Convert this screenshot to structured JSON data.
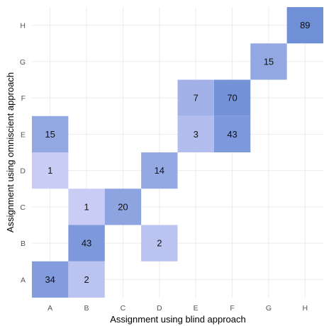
{
  "chart_data": {
    "type": "heatmap",
    "xlabel": "Assignment using blind approach",
    "ylabel": "Assignment using omniscient approach",
    "x_categories": [
      "A",
      "B",
      "C",
      "D",
      "E",
      "F",
      "G",
      "H"
    ],
    "y_categories": [
      "A",
      "B",
      "C",
      "D",
      "E",
      "F",
      "G",
      "H"
    ],
    "cells": [
      {
        "x": "A",
        "y": "A",
        "value": 34
      },
      {
        "x": "B",
        "y": "A",
        "value": 2
      },
      {
        "x": "B",
        "y": "B",
        "value": 43
      },
      {
        "x": "D",
        "y": "B",
        "value": 2
      },
      {
        "x": "B",
        "y": "C",
        "value": 1
      },
      {
        "x": "C",
        "y": "C",
        "value": 20
      },
      {
        "x": "A",
        "y": "D",
        "value": 1
      },
      {
        "x": "D",
        "y": "D",
        "value": 14
      },
      {
        "x": "A",
        "y": "E",
        "value": 15
      },
      {
        "x": "E",
        "y": "E",
        "value": 3
      },
      {
        "x": "F",
        "y": "E",
        "value": 43
      },
      {
        "x": "E",
        "y": "F",
        "value": 7
      },
      {
        "x": "F",
        "y": "F",
        "value": 70
      },
      {
        "x": "G",
        "y": "G",
        "value": 15
      },
      {
        "x": "H",
        "y": "H",
        "value": 89
      }
    ],
    "color_scale": {
      "low": "#c9cdf6",
      "high": "#6f8fd6",
      "min": 1,
      "max": 89
    },
    "grid": true,
    "legend": "none"
  }
}
